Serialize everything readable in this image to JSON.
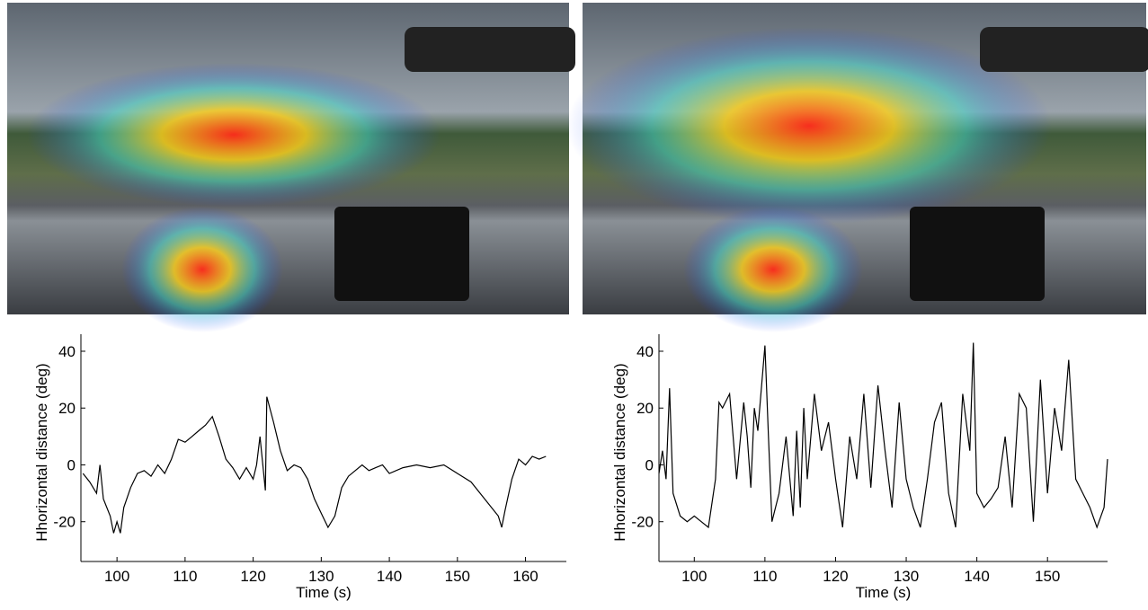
{
  "chart_data": [
    {
      "type": "line",
      "xlabel": "Time (s)",
      "ylabel": "Hhorizontal distance (deg)",
      "color": "#000000",
      "xlim": [
        94.7,
        166
      ],
      "ylim": [
        -34,
        46
      ],
      "xticks": [
        100,
        110,
        120,
        130,
        140,
        150,
        160
      ],
      "yticks": [
        -20,
        0,
        20,
        40
      ],
      "x": [
        95,
        96,
        97,
        97.5,
        98,
        99,
        99.5,
        100,
        100.5,
        101,
        102,
        103,
        104,
        105,
        106,
        107,
        108,
        109,
        110,
        111,
        112,
        113,
        114,
        115,
        116,
        117,
        118,
        119,
        120,
        120.5,
        121,
        121.8,
        122,
        123,
        124,
        125,
        126,
        127,
        128,
        129,
        130,
        131,
        132,
        133,
        134,
        135,
        136,
        137,
        138,
        139,
        140,
        142,
        144,
        146,
        148,
        150,
        152,
        154,
        156,
        156.5,
        157,
        158,
        159,
        160,
        161,
        162,
        163
      ],
      "values": [
        -3,
        -6,
        -10,
        0,
        -12,
        -18,
        -24,
        -20,
        -24,
        -15,
        -8,
        -3,
        -2,
        -4,
        0,
        -3,
        2,
        9,
        8,
        10,
        12,
        14,
        17,
        10,
        2,
        -1,
        -5,
        -1,
        -5,
        0,
        10,
        -9,
        24,
        15,
        5,
        -2,
        0,
        -1,
        -5,
        -12,
        -17,
        -22,
        -18,
        -8,
        -4,
        -2,
        0,
        -2,
        -1,
        0,
        -3,
        -1,
        0,
        -1,
        0,
        -3,
        -6,
        -12,
        -18,
        -22,
        -16,
        -5,
        2,
        0,
        3,
        2,
        3
      ]
    },
    {
      "type": "line",
      "xlabel": "Time (s)",
      "ylabel": "Hhorizontal distance (deg)",
      "color": "#000000",
      "xlim": [
        95,
        158.5
      ],
      "ylim": [
        -34,
        46
      ],
      "xticks": [
        100,
        110,
        120,
        130,
        140,
        150
      ],
      "yticks": [
        -20,
        0,
        20,
        40
      ],
      "x": [
        95,
        95.5,
        96,
        96.5,
        97,
        98,
        99,
        100,
        101,
        102,
        103,
        103.5,
        104,
        105,
        106,
        107,
        107.5,
        108,
        108.5,
        109,
        110,
        110.5,
        111,
        112,
        113,
        114,
        114.5,
        115,
        115.5,
        116,
        117,
        118,
        119,
        120,
        121,
        122,
        123,
        124,
        125,
        126,
        127,
        128,
        129,
        130,
        131,
        132,
        133,
        134,
        135,
        136,
        137,
        138,
        139,
        139.5,
        140,
        141,
        142,
        143,
        144,
        145,
        146,
        147,
        148,
        149,
        150,
        151,
        152,
        153,
        154,
        155,
        156,
        157,
        158,
        158.5
      ],
      "values": [
        -3,
        5,
        -5,
        27,
        -10,
        -18,
        -20,
        -18,
        -20,
        -22,
        -5,
        22,
        20,
        25,
        -5,
        22,
        10,
        -8,
        20,
        12,
        42,
        10,
        -20,
        -10,
        10,
        -18,
        12,
        -15,
        20,
        -5,
        25,
        5,
        15,
        -5,
        -22,
        10,
        -5,
        25,
        -8,
        28,
        5,
        -15,
        22,
        -5,
        -15,
        -22,
        -5,
        15,
        22,
        -10,
        -22,
        25,
        5,
        43,
        -10,
        -15,
        -12,
        -8,
        10,
        -15,
        25,
        20,
        -20,
        30,
        -10,
        20,
        5,
        37,
        -5,
        -10,
        -15,
        -22,
        -15,
        2
      ]
    }
  ]
}
